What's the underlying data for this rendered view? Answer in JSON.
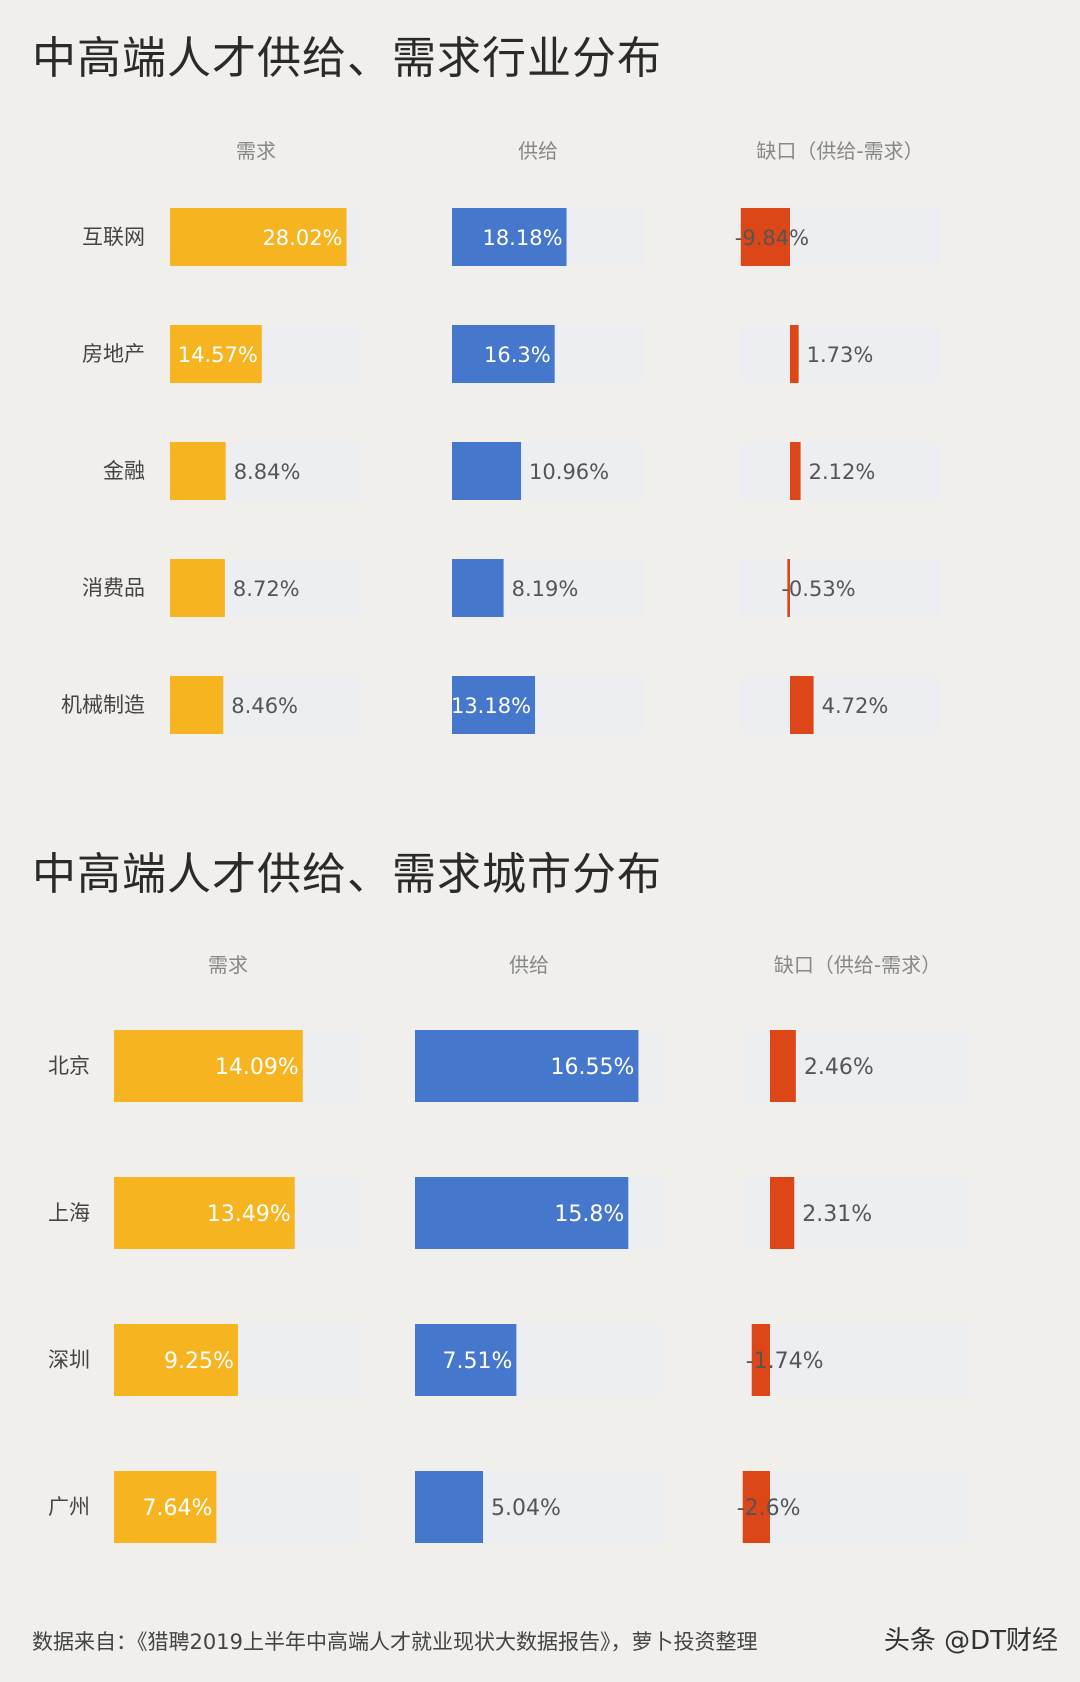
{
  "charts": [
    {
      "title": "中高端人才供给、需求行业分布",
      "chart_data": {
        "type": "bar",
        "categories": [
          "互联网",
          "房地产",
          "金融",
          "消费品",
          "机械制造"
        ],
        "series": [
          {
            "name": "需求",
            "values": [
              28.02,
              14.57,
              8.84,
              8.72,
              8.46
            ],
            "labels": [
              "28.02%",
              "14.57%",
              "8.84%",
              "8.72%",
              "8.46%"
            ],
            "color": "#f6b421"
          },
          {
            "name": "供给",
            "values": [
              18.18,
              16.3,
              10.96,
              8.19,
              13.18
            ],
            "labels": [
              "18.18%",
              "16.3%",
              "10.96%",
              "8.19%",
              "13.18%"
            ],
            "color": "#4577cc"
          },
          {
            "name": "缺口（供给-需求）",
            "values": [
              -9.84,
              1.73,
              2.12,
              -0.53,
              4.72
            ],
            "labels": [
              "-9.84%",
              "1.73%",
              "2.12%",
              "-0.53%",
              "4.72%"
            ],
            "color": "#dd4616"
          }
        ],
        "unit": "%"
      }
    },
    {
      "title": "中高端人才供给、需求城市分布",
      "chart_data": {
        "type": "bar",
        "categories": [
          "北京",
          "上海",
          "深圳",
          "广州"
        ],
        "series": [
          {
            "name": "需求",
            "values": [
              14.09,
              13.49,
              9.25,
              7.64
            ],
            "labels": [
              "14.09%",
              "13.49%",
              "9.25%",
              "7.64%"
            ],
            "color": "#f6b421"
          },
          {
            "name": "供给",
            "values": [
              16.55,
              15.8,
              7.51,
              5.04
            ],
            "labels": [
              "16.55%",
              "15.8%",
              "7.51%",
              "5.04%"
            ],
            "color": "#4577cc"
          },
          {
            "name": "缺口（供给-需求）",
            "values": [
              2.46,
              2.31,
              -1.74,
              -2.6
            ],
            "labels": [
              "2.46%",
              "2.31%",
              "-1.74%",
              "-2.6%"
            ],
            "color": "#dd4616"
          }
        ],
        "unit": "%"
      }
    }
  ],
  "footer": {
    "source": "数据来自：《猎聘2019上半年中高端人才就业现状大数据报告》，萝卜投资整理",
    "watermark": "头条 @DT财经"
  },
  "colors": {
    "background": "#f1efec",
    "track": "#eceef2",
    "label": "#444444",
    "header": "#888888"
  }
}
